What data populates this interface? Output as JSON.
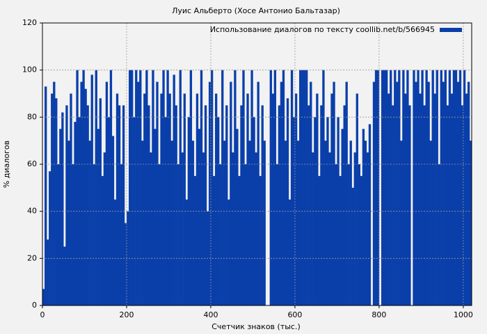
{
  "chart_data": {
    "type": "bar",
    "title": "Луис Альберто (Хосе Антонио Бальтазар)",
    "x_label": "Счетчик знаков (тыс.)",
    "y_label": "% диалогов",
    "x": [
      0,
      5,
      10,
      15,
      20,
      25,
      30,
      35,
      40,
      45,
      50,
      55,
      60,
      65,
      70,
      75,
      80,
      85,
      90,
      95,
      100,
      105,
      110,
      115,
      120,
      125,
      130,
      135,
      140,
      145,
      150,
      155,
      160,
      165,
      170,
      175,
      180,
      185,
      190,
      195,
      200,
      205,
      210,
      215,
      220,
      225,
      230,
      235,
      240,
      245,
      250,
      255,
      260,
      265,
      270,
      275,
      280,
      285,
      290,
      295,
      300,
      305,
      310,
      315,
      320,
      325,
      330,
      335,
      340,
      345,
      350,
      355,
      360,
      365,
      370,
      375,
      380,
      385,
      390,
      395,
      400,
      405,
      410,
      415,
      420,
      425,
      430,
      435,
      440,
      445,
      450,
      455,
      460,
      465,
      470,
      475,
      480,
      485,
      490,
      495,
      500,
      505,
      510,
      515,
      520,
      525,
      530,
      535,
      540,
      545,
      550,
      555,
      560,
      565,
      570,
      575,
      580,
      585,
      590,
      595,
      600,
      605,
      610,
      615,
      620,
      625,
      630,
      635,
      640,
      645,
      650,
      655,
      660,
      665,
      670,
      675,
      680,
      685,
      690,
      695,
      700,
      705,
      710,
      715,
      720,
      725,
      730,
      735,
      740,
      745,
      750,
      755,
      760,
      765,
      770,
      775,
      780,
      785,
      790,
      795,
      800,
      805,
      810,
      815,
      820,
      825,
      830,
      835,
      840,
      845,
      850,
      855,
      860,
      865,
      870,
      875,
      880,
      885,
      890,
      895,
      900,
      905,
      910,
      915,
      920,
      925,
      930,
      935,
      940,
      945,
      950,
      955,
      960,
      965,
      970,
      975,
      980,
      985,
      990,
      995,
      1000,
      1005,
      1010,
      1015
    ],
    "series": [
      {
        "name": "Использование диалогов по тексту coollib.net/b/566945",
        "color": "#0a3faa",
        "values": [
          7,
          93,
          28,
          57,
          90,
          95,
          88,
          60,
          75,
          82,
          25,
          85,
          70,
          90,
          60,
          78,
          100,
          80,
          95,
          100,
          92,
          85,
          70,
          98,
          60,
          100,
          75,
          88,
          55,
          65,
          95,
          80,
          100,
          72,
          45,
          90,
          85,
          60,
          85,
          35,
          40,
          100,
          100,
          80,
          100,
          95,
          100,
          70,
          90,
          100,
          85,
          65,
          100,
          75,
          95,
          60,
          90,
          100,
          80,
          100,
          90,
          70,
          98,
          85,
          60,
          100,
          65,
          90,
          45,
          80,
          100,
          70,
          55,
          90,
          75,
          100,
          65,
          85,
          40,
          95,
          100,
          55,
          90,
          80,
          60,
          100,
          70,
          85,
          45,
          95,
          65,
          100,
          75,
          55,
          85,
          100,
          60,
          90,
          70,
          100,
          80,
          65,
          95,
          55,
          85,
          70,
          0,
          0,
          100,
          90,
          100,
          60,
          85,
          95,
          100,
          70,
          88,
          45,
          100,
          80,
          90,
          70,
          100,
          100,
          100,
          100,
          85,
          95,
          65,
          80,
          90,
          55,
          85,
          100,
          70,
          80,
          65,
          90,
          95,
          60,
          80,
          55,
          75,
          85,
          95,
          60,
          70,
          50,
          65,
          90,
          60,
          55,
          75,
          70,
          65,
          77,
          0,
          95,
          100,
          100,
          0,
          100,
          100,
          100,
          90,
          100,
          85,
          100,
          95,
          100,
          70,
          100,
          90,
          100,
          85,
          0,
          100,
          95,
          100,
          90,
          100,
          85,
          100,
          95,
          70,
          100,
          90,
          100,
          60,
          100,
          95,
          100,
          85,
          100,
          90,
          100,
          100,
          95,
          100,
          85,
          100,
          90,
          95,
          70
        ]
      }
    ],
    "xlim": [
      0,
      1020
    ],
    "ylim": [
      0,
      120
    ],
    "xticks": [
      0,
      200,
      400,
      600,
      800,
      1000
    ],
    "yticks": [
      0,
      20,
      40,
      60,
      80,
      100,
      120
    ],
    "grid": true,
    "legend": "upper right"
  }
}
